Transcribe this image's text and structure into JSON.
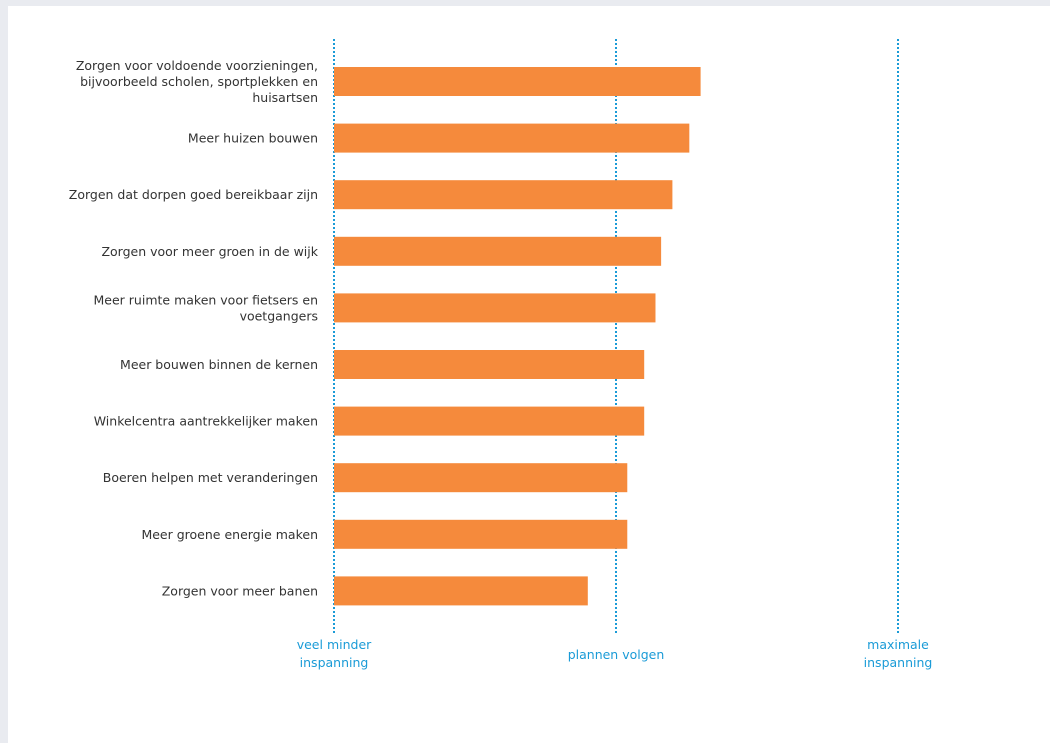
{
  "chart_data": {
    "type": "bar",
    "orientation": "horizontal",
    "categories": [
      [
        "Zorgen voor voldoende voorzieningen,",
        "bijvoorbeeld scholen, sportplekken en",
        "huisartsen"
      ],
      [
        "Meer huizen bouwen"
      ],
      [
        "Zorgen dat dorpen goed bereikbaar zijn"
      ],
      [
        "Zorgen voor meer groen in de wijk"
      ],
      [
        "Meer ruimte maken voor fietsers en",
        "voetgangers"
      ],
      [
        "Meer bouwen binnen de kernen"
      ],
      [
        "Winkelcentra aantrekkelijker maken"
      ],
      [
        "Boeren helpen met veranderingen"
      ],
      [
        "Meer groene energie maken"
      ],
      [
        "Zorgen voor meer banen"
      ]
    ],
    "values": [
      1.3,
      1.26,
      1.2,
      1.16,
      1.14,
      1.1,
      1.1,
      1.04,
      1.04,
      0.9
    ],
    "xlim": [
      0,
      2
    ],
    "reference_lines": [
      {
        "value": 0,
        "label": [
          "veel minder",
          "inspanning"
        ]
      },
      {
        "value": 1,
        "label": [
          "plannen volgen"
        ]
      },
      {
        "value": 2,
        "label": [
          "maximale",
          "inspanning"
        ]
      }
    ],
    "colors": {
      "bar": "#f58a3c",
      "reference_line": "#1a9bd7",
      "reference_label": "#1a9bd7",
      "category_label": "#333333",
      "background": "#ffffff",
      "frame": "#e9ebf0"
    },
    "grid": false,
    "legend": "none"
  }
}
